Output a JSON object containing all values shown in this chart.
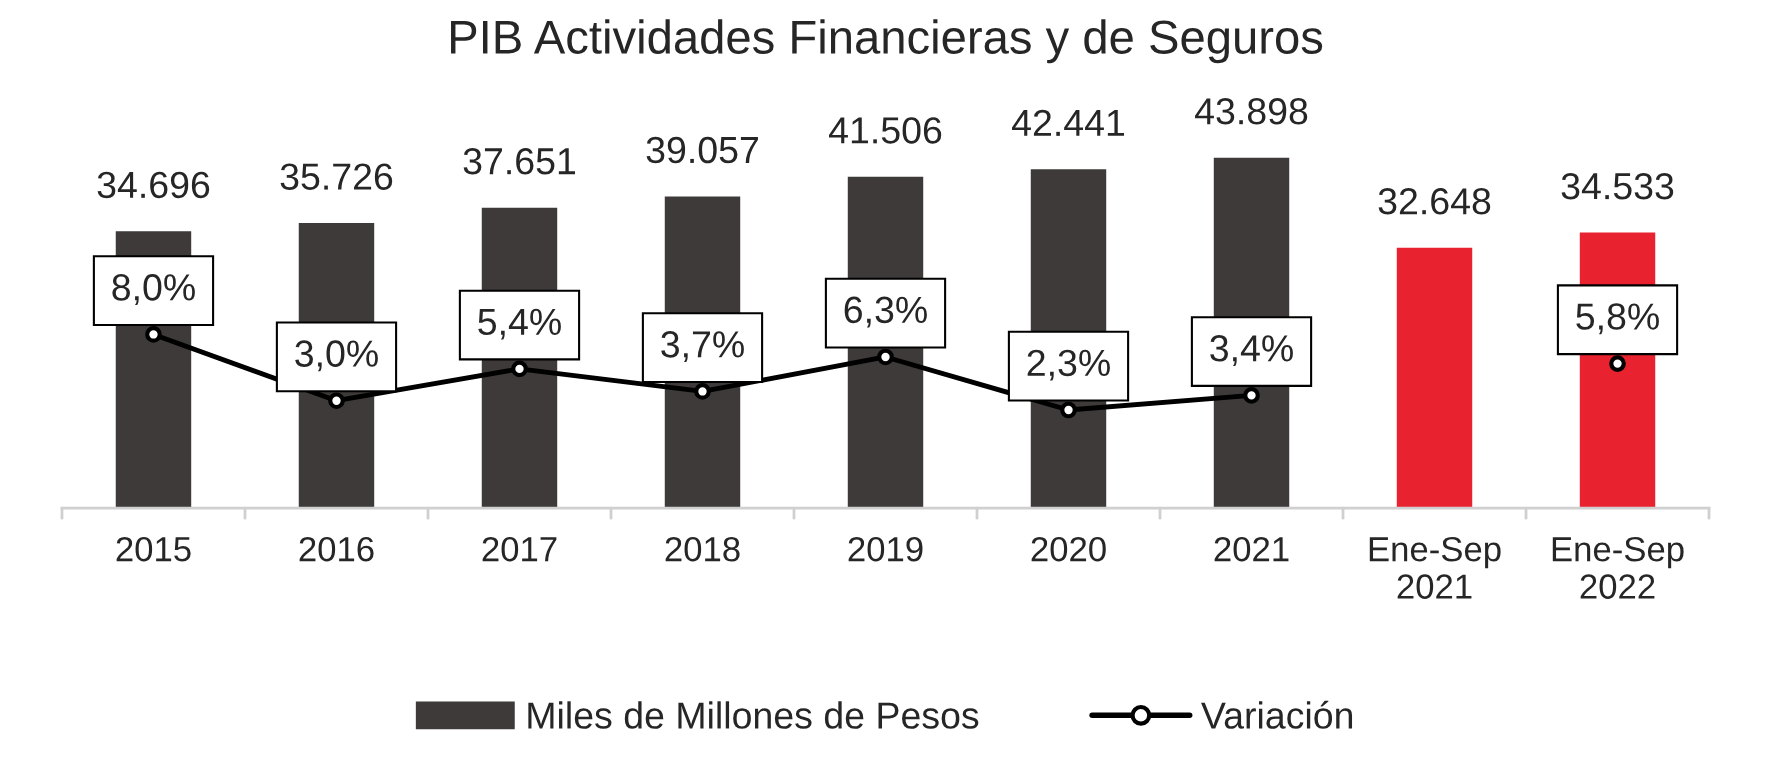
{
  "chart_data": {
    "type": "bar",
    "title": "PIB Actividades Financieras y de Seguros",
    "categories": [
      "2015",
      "2016",
      "2017",
      "2018",
      "2019",
      "2020",
      "2021",
      "Ene-Sep\n2021",
      "Ene-Sep\n2022"
    ],
    "series": [
      {
        "name": "Miles de Millones de Pesos",
        "color": "#3d3a39",
        "colors": [
          "#3d3a39",
          "#3d3a39",
          "#3d3a39",
          "#3d3a39",
          "#3d3a39",
          "#3d3a39",
          "#3d3a39",
          "#e8232f",
          "#e8232f"
        ],
        "values": [
          34696,
          35726,
          37651,
          39057,
          41506,
          42441,
          43898,
          32648,
          34533
        ],
        "value_labels": [
          "34.696",
          "35.726",
          "37.651",
          "39.057",
          "41.506",
          "42.441",
          "43.898",
          "32.648",
          "34.533"
        ]
      },
      {
        "name": "Variación",
        "type": "line",
        "color": "#000000",
        "axis": "y2",
        "values": [
          8.0,
          3.0,
          5.4,
          3.7,
          6.3,
          2.3,
          3.4,
          null,
          5.8
        ],
        "value_labels": [
          "8,0%",
          "3,0%",
          "5,4%",
          "3,7%",
          "6,3%",
          "2,3%",
          "3,4%",
          null,
          "5,8%"
        ]
      }
    ],
    "tick_labels": "x",
    "legend": "bottom",
    "grid": false,
    "marker": "circle",
    "line_style": "solid"
  }
}
